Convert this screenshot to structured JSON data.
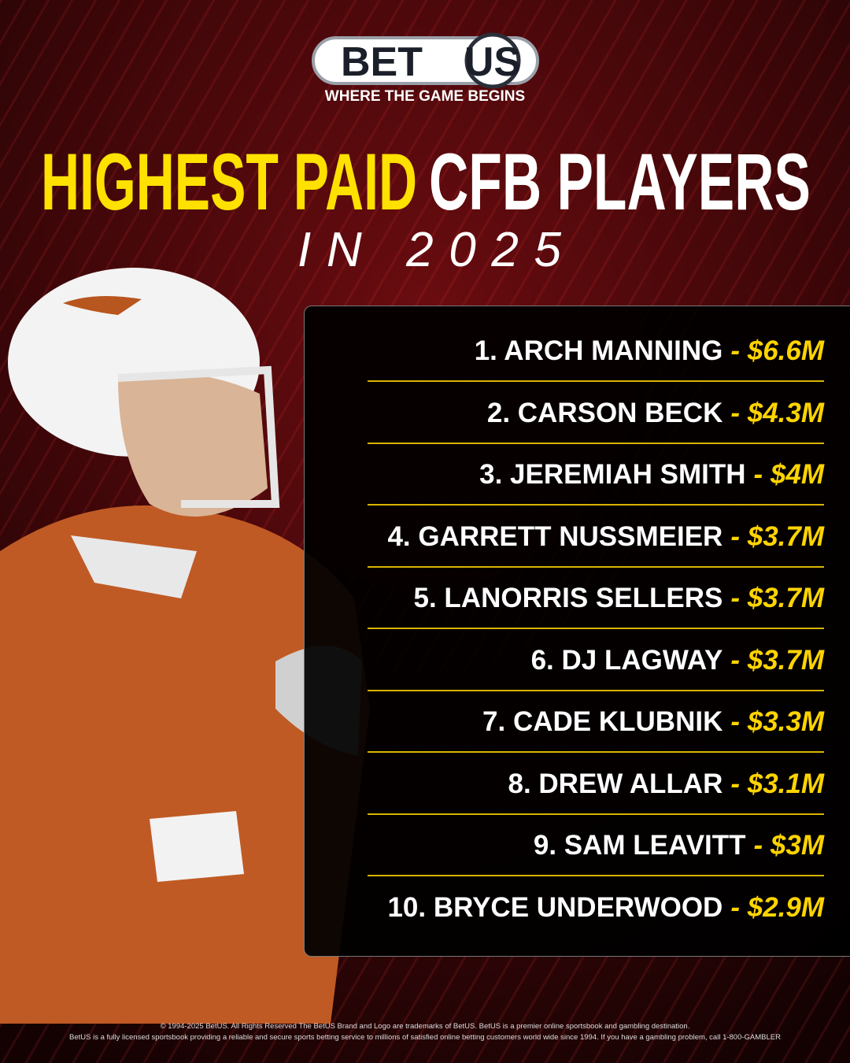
{
  "logo": {
    "left": "BET",
    "right": "US",
    "tagline": "WHERE THE GAME BEGINS"
  },
  "title": {
    "highlight": "HIGHEST PAID",
    "rest": "CFB PLAYERS",
    "subtitle": "IN 2025"
  },
  "list": [
    {
      "player": "1. ARCH MANNING",
      "amount": "- $6.6M"
    },
    {
      "player": "2. CARSON BECK",
      "amount": "- $4.3M"
    },
    {
      "player": "3. JEREMIAH SMITH",
      "amount": "- $4M"
    },
    {
      "player": "4. GARRETT NUSSMEIER",
      "amount": "- $3.7M"
    },
    {
      "player": "5. LANORRIS SELLERS",
      "amount": "- $3.7M"
    },
    {
      "player": "6. DJ LAGWAY",
      "amount": "- $3.7M"
    },
    {
      "player": "7. CADE KLUBNIK",
      "amount": "- $3.3M"
    },
    {
      "player": "8. DREW ALLAR",
      "amount": "- $3.1M"
    },
    {
      "player": "9. SAM LEAVITT",
      "amount": "- $3M"
    },
    {
      "player": "10. BRYCE UNDERWOOD",
      "amount": "- $2.9M"
    }
  ],
  "footer": [
    "© 1994-2025 BetUS. All Rights Reserved The BetUS Brand and Logo are trademarks of BetUS. BetUS is a premier online sportsbook and gambling destination.",
    "BetUS is a fully licensed sportsbook providing a reliable and secure sports betting service to millions of satisfied online betting customers world wide since 1994. If you have a gambling problem, call 1-800-GAMBLER"
  ]
}
